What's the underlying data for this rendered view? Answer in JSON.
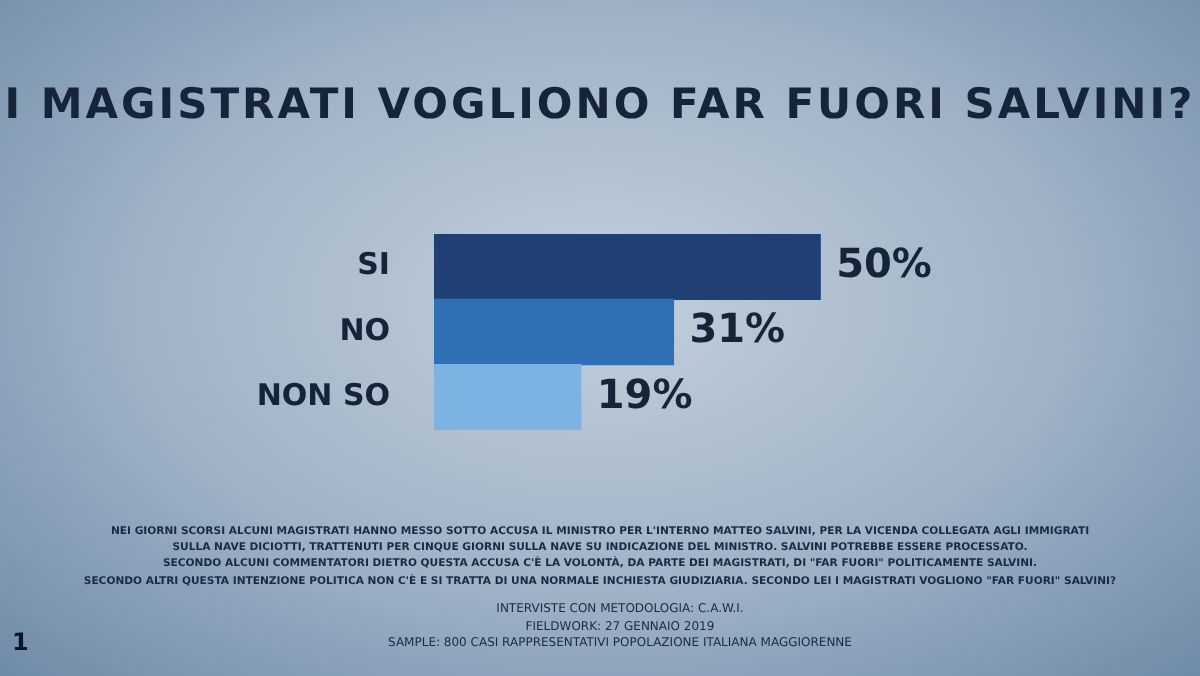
{
  "chart_data": {
    "type": "bar",
    "orientation": "horizontal",
    "title": "I MAGISTRATI VOGLIONO FAR FUORI SALVINI?",
    "categories": [
      "SI",
      "NO",
      "NON SO"
    ],
    "values": [
      50,
      31,
      19
    ],
    "colors": [
      "#1f3f75",
      "#2f6fb3",
      "#7db3e3"
    ],
    "value_labels": [
      "50%",
      "31%",
      "19%"
    ],
    "annotations": [
      "NEI GIORNI SCORSI ALCUNI MAGISTRATI HANNO MESSO SOTTO ACCUSA IL MINISTRO PER L'INTERNO MATTEO SALVINI, PER LA VICENDA COLLEGATA AGLI IMMIGRATI",
      "SULLA NAVE DICIOTTI, TRATTENUTI PER CINQUE GIORNI SULLA NAVE SU INDICAZIONE DEL MINISTRO. SALVINI POTREBBE ESSERE PROCESSATO.",
      "SECONDO ALCUNI COMMENTATORI DIETRO QUESTA ACCUSA C'È LA VOLONTÀ, DA PARTE DEI MAGISTRATI, DI \"FAR FUORI\" POLITICAMENTE SALVINI.",
      "SECONDO ALTRI QUESTA INTENZIONE POLITICA NON C'È E SI TRATTA DI UNA NORMALE INCHIESTA GIUDIZIARIA. SECONDO LEI I MAGISTRATI VOGLIONO \"FAR FUORI\" SALVINI?",
      "INTERVISTE CON METODOLOGIA: C.A.W.I.",
      "FIELDWORK: 27 GENNAIO 2019",
      "SAMPLE: 800 CASI RAPPRESENTATIVI POPOLAZIONE ITALIANA MAGGIORENNE",
      "1"
    ]
  }
}
